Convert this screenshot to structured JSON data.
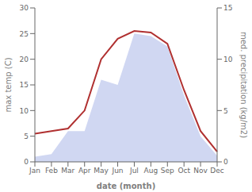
{
  "chart_data": {
    "type": "line",
    "xlabel": "date (month)",
    "ylabel": "max temp (C)",
    "y2label": "med. precipitation (kg/m2)",
    "categories": [
      "Jan",
      "Feb",
      "Mar",
      "Apr",
      "May",
      "Jun",
      "Jul",
      "Aug",
      "Sep",
      "Oct",
      "Nov",
      "Dec"
    ],
    "series": [
      {
        "type": "area",
        "color": "#c8d0f0",
        "values": [
          1.0,
          1.5,
          6.0,
          6.0,
          16.0,
          15.0,
          25.0,
          24.5,
          22.5,
          13.0,
          5.0,
          1.2
        ]
      },
      {
        "type": "line",
        "color": "#b03030",
        "values": [
          5.5,
          6.0,
          6.5,
          10.0,
          20.0,
          24.0,
          25.5,
          25.2,
          23.0,
          14.0,
          6.0,
          2.0
        ]
      }
    ],
    "ylim": [
      0,
      30
    ],
    "yticks": [
      0,
      5,
      10,
      15,
      20,
      25,
      30
    ],
    "y2lim": [
      0,
      15
    ],
    "y2ticks": [
      0,
      5,
      10,
      15
    ],
    "grid": false
  }
}
